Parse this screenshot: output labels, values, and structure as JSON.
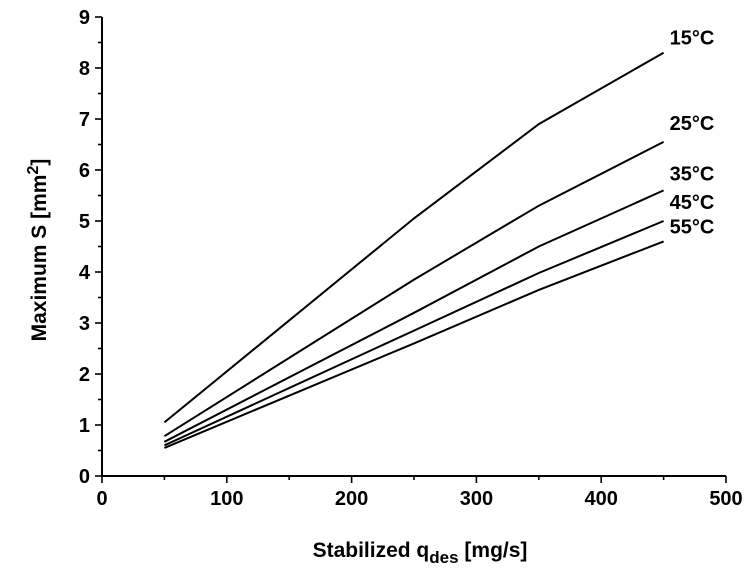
{
  "chart_data": {
    "type": "line",
    "xlabel_main": "Stabilized q",
    "xlabel_sub": "des",
    "xlabel_unit": " [mg/s]",
    "ylabel_main": "Maximum S [mm",
    "ylabel_sup": "2",
    "ylabel_end": "]",
    "xlim": [
      0,
      500
    ],
    "ylim": [
      0,
      9
    ],
    "x_ticks": [
      0,
      100,
      200,
      300,
      400,
      500
    ],
    "y_ticks": [
      0,
      1,
      2,
      3,
      4,
      5,
      6,
      7,
      8,
      9
    ],
    "grid": false,
    "series": [
      {
        "name": "15°C",
        "x": [
          50,
          250,
          350,
          450
        ],
        "y": [
          1.05,
          5.05,
          6.9,
          8.3
        ]
      },
      {
        "name": "25°C",
        "x": [
          50,
          250,
          350,
          450
        ],
        "y": [
          0.78,
          3.85,
          5.3,
          6.55
        ]
      },
      {
        "name": "35°C",
        "x": [
          50,
          250,
          350,
          450
        ],
        "y": [
          0.67,
          3.2,
          4.5,
          5.6
        ]
      },
      {
        "name": "45°C",
        "x": [
          50,
          250,
          350,
          450
        ],
        "y": [
          0.6,
          2.85,
          3.98,
          5.0
        ]
      },
      {
        "name": "55°C",
        "x": [
          50,
          250,
          350,
          450
        ],
        "y": [
          0.55,
          2.6,
          3.65,
          4.6
        ]
      }
    ]
  }
}
